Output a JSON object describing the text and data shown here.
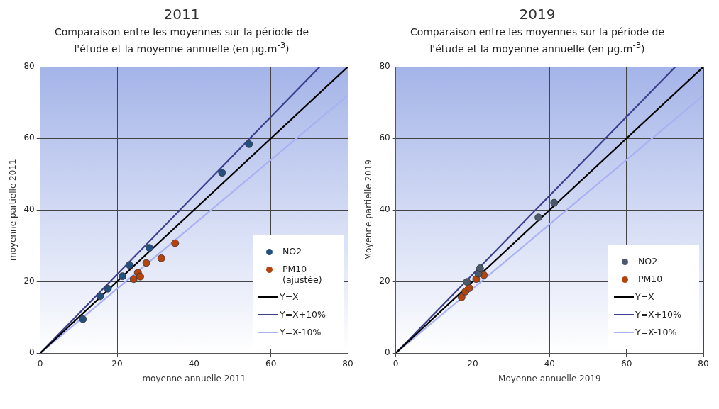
{
  "chart_data": [
    {
      "type": "scatter",
      "title": "2011",
      "subtitle": "Comparaison entre les moyennes sur la période de l'étude et la moyenne annuelle (en µg.m$^{-3}$)",
      "xlabel": "moyenne annuelle 2011",
      "ylabel": "moyenne partielle 2011",
      "xlim": [
        0,
        80
      ],
      "ylim": [
        0,
        80
      ],
      "xticks": [
        0,
        20,
        40,
        60,
        80
      ],
      "yticks": [
        0,
        20,
        40,
        60,
        80
      ],
      "grid": true,
      "legend": "bottom right",
      "series": [
        {
          "name": "NO2",
          "marker": "circle",
          "color": "#24507e",
          "x": [
            11.1,
            15.6,
            17.6,
            21.4,
            23.2,
            28.4,
            47.3,
            54.3
          ],
          "values": [
            9.5,
            15.9,
            18.0,
            21.5,
            24.6,
            29.4,
            50.4,
            58.4
          ]
        },
        {
          "name": "PM10 (ajustée)",
          "marker": "circle",
          "color": "#b4440e",
          "x": [
            24.3,
            25.4,
            26.0,
            27.6,
            31.5,
            35.1
          ],
          "values": [
            20.7,
            22.5,
            21.4,
            25.2,
            26.5,
            30.7
          ]
        },
        {
          "name": "Y=X",
          "type": "line",
          "color": "#000000",
          "x": [
            0,
            80
          ],
          "values": [
            0,
            80
          ]
        },
        {
          "name": "Y=X+10%",
          "type": "line",
          "color": "#3c3f8c",
          "x": [
            0,
            72.7
          ],
          "values": [
            0,
            80
          ]
        },
        {
          "name": "Y=X-10%",
          "type": "line",
          "color": "#a9b1f2",
          "x": [
            0,
            80
          ],
          "values": [
            0,
            72
          ]
        }
      ]
    },
    {
      "type": "scatter",
      "title": "2019",
      "subtitle": "Comparaison entre les moyennes sur la période de l'étude et la moyenne annuelle (en µg.m$^{-3}$)",
      "xlabel": "Moyenne annuelle 2019",
      "ylabel": "Moyenne partielle 2019",
      "xlim": [
        0,
        80
      ],
      "ylim": [
        0,
        80
      ],
      "xticks": [
        0,
        20,
        40,
        60,
        80
      ],
      "yticks": [
        0,
        20,
        40,
        60,
        80
      ],
      "grid": true,
      "legend": "bottom right",
      "series": [
        {
          "name": "NO2",
          "marker": "circle",
          "color": "#4b5a6b",
          "x": [
            18.5,
            21.5,
            21.9,
            37.1,
            41.2
          ],
          "values": [
            19.9,
            22.2,
            23.7,
            37.9,
            42.0
          ]
        },
        {
          "name": "PM10",
          "marker": "circle",
          "color": "#b4440e",
          "x": [
            17.1,
            18.1,
            19.1,
            20.9,
            22.9
          ],
          "values": [
            15.6,
            17.2,
            18.2,
            20.7,
            21.8
          ]
        },
        {
          "name": "Y=X",
          "type": "line",
          "color": "#000000",
          "x": [
            0,
            80
          ],
          "values": [
            0,
            80
          ]
        },
        {
          "name": "Y=X+10%",
          "type": "line",
          "color": "#3c3f8c",
          "x": [
            0,
            72.7
          ],
          "values": [
            0,
            80
          ]
        },
        {
          "name": "Y=X-10%",
          "type": "line",
          "color": "#a9b1f2",
          "x": [
            0,
            80
          ],
          "values": [
            0,
            72
          ]
        }
      ]
    }
  ]
}
